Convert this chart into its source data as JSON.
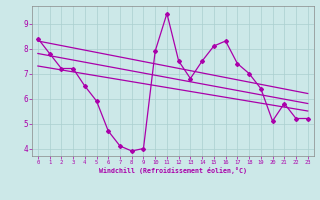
{
  "xlabel": "Windchill (Refroidissement éolien,°C)",
  "background_color": "#cce8e8",
  "line_color": "#aa00aa",
  "xlim": [
    -0.5,
    23.5
  ],
  "ylim": [
    3.7,
    9.7
  ],
  "yticks": [
    4,
    5,
    6,
    7,
    8,
    9
  ],
  "xticks": [
    0,
    1,
    2,
    3,
    4,
    5,
    6,
    7,
    8,
    9,
    10,
    11,
    12,
    13,
    14,
    15,
    16,
    17,
    18,
    19,
    20,
    21,
    22,
    23
  ],
  "series1_x": [
    0,
    1,
    2,
    3,
    4,
    5,
    6,
    7,
    8,
    9,
    10,
    11,
    12,
    13,
    14,
    15,
    16,
    17,
    18,
    19,
    20,
    21,
    22,
    23
  ],
  "series1_y": [
    8.4,
    7.8,
    7.2,
    7.2,
    6.5,
    5.9,
    4.7,
    4.1,
    3.9,
    4.0,
    7.9,
    9.4,
    7.5,
    6.8,
    7.5,
    8.1,
    8.3,
    7.4,
    7.0,
    6.4,
    5.1,
    5.8,
    5.2,
    5.2
  ],
  "series2_x": [
    0,
    23
  ],
  "series2_y": [
    8.3,
    6.2
  ],
  "series3_x": [
    0,
    23
  ],
  "series3_y": [
    7.8,
    5.8
  ],
  "series4_x": [
    0,
    23
  ],
  "series4_y": [
    7.3,
    5.5
  ]
}
